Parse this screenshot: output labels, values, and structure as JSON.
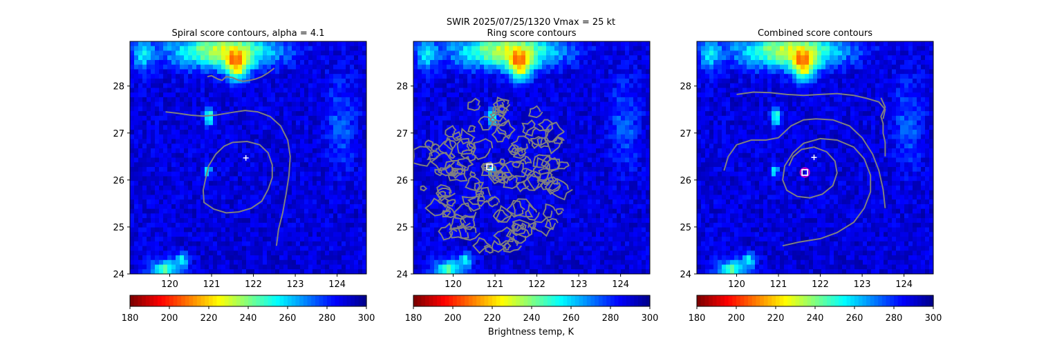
{
  "figure": {
    "suptitle_line1": "SWIR  2025/07/25/1320    Vmax = 25 kt",
    "colorbar_label": "Brightness temp, K"
  },
  "colormap": {
    "name": "jet_r",
    "stops": [
      "#800000",
      "#ff0000",
      "#ff8000",
      "#ffff00",
      "#80ff80",
      "#00ffff",
      "#0080ff",
      "#0000ff",
      "#00008f"
    ]
  },
  "chart_data": [
    {
      "type": "heatmap",
      "title": "Spiral score contours, alpha =  4.1",
      "xlim": [
        119.05,
        124.7
      ],
      "ylim": [
        24.0,
        28.95
      ],
      "xticks": [
        120,
        121,
        122,
        123,
        124
      ],
      "yticks": [
        24,
        25,
        26,
        27,
        28
      ],
      "color_range": [
        180,
        300
      ],
      "colorbar_ticks": [
        180,
        200,
        220,
        240,
        260,
        280,
        300
      ],
      "contour_color": "#808080",
      "markers": [
        {
          "kind": "plus",
          "color": "#ffffff",
          "lon": 121.82,
          "lat": 26.47
        }
      ],
      "contours": [
        [
          [
            120.9,
            28.2
          ],
          [
            121.0,
            28.22
          ],
          [
            121.15,
            28.15
          ],
          [
            121.25,
            28.12
          ],
          [
            121.35,
            28.2
          ],
          [
            121.5,
            28.18
          ],
          [
            121.65,
            28.12
          ],
          [
            121.75,
            28.1
          ],
          [
            121.9,
            28.12
          ],
          [
            122.05,
            28.15
          ],
          [
            122.2,
            28.2
          ],
          [
            122.35,
            28.28
          ],
          [
            122.5,
            28.38
          ]
        ],
        [
          [
            119.9,
            27.45
          ],
          [
            120.2,
            27.42
          ],
          [
            120.5,
            27.38
          ],
          [
            120.8,
            27.36
          ],
          [
            121.1,
            27.38
          ],
          [
            121.5,
            27.44
          ],
          [
            121.8,
            27.48
          ],
          [
            122.1,
            27.45
          ],
          [
            122.4,
            27.35
          ],
          [
            122.65,
            27.15
          ],
          [
            122.82,
            26.85
          ],
          [
            122.88,
            26.5
          ],
          [
            122.85,
            26.1
          ],
          [
            122.78,
            25.7
          ],
          [
            122.7,
            25.3
          ],
          [
            122.6,
            24.95
          ],
          [
            122.55,
            24.6
          ]
        ],
        [
          [
            121.5,
            26.8
          ],
          [
            121.85,
            26.82
          ],
          [
            122.15,
            26.75
          ],
          [
            122.35,
            26.58
          ],
          [
            122.45,
            26.32
          ],
          [
            122.45,
            26.05
          ],
          [
            122.35,
            25.8
          ],
          [
            122.2,
            25.55
          ],
          [
            121.95,
            25.4
          ],
          [
            121.65,
            25.32
          ],
          [
            121.35,
            25.3
          ],
          [
            121.05,
            25.38
          ],
          [
            120.82,
            25.52
          ],
          [
            120.8,
            25.78
          ],
          [
            120.85,
            26.0
          ],
          [
            120.93,
            26.3
          ],
          [
            121.1,
            26.55
          ],
          [
            121.3,
            26.72
          ],
          [
            121.5,
            26.8
          ]
        ]
      ]
    },
    {
      "type": "heatmap",
      "title": "Ring score contours",
      "xlim": [
        119.05,
        124.7
      ],
      "ylim": [
        24.0,
        28.95
      ],
      "xticks": [
        120,
        121,
        122,
        123,
        124
      ],
      "yticks": [
        24,
        25,
        26,
        27,
        28
      ],
      "color_range": [
        180,
        300
      ],
      "colorbar_ticks": [
        180,
        200,
        220,
        240,
        260,
        280,
        300
      ],
      "contour_color": "#808080",
      "ring_center": [
        121.0,
        26.1
      ],
      "ring_radius_deg": [
        1.8,
        1.6
      ],
      "markers": [
        {
          "kind": "square",
          "color": "#ffffff",
          "lon": 120.87,
          "lat": 26.28
        }
      ],
      "contours": []
    },
    {
      "type": "heatmap",
      "title": "Combined score contours",
      "xlim": [
        119.05,
        124.7
      ],
      "ylim": [
        24.0,
        28.95
      ],
      "xticks": [
        120,
        121,
        122,
        123,
        124
      ],
      "yticks": [
        24,
        25,
        26,
        27,
        28
      ],
      "color_range": [
        180,
        300
      ],
      "colorbar_ticks": [
        180,
        200,
        220,
        240,
        260,
        280,
        300
      ],
      "contour_color": "#808080",
      "markers": [
        {
          "kind": "plus",
          "color": "#ffffff",
          "lon": 121.85,
          "lat": 26.48
        },
        {
          "kind": "circle",
          "color": "#cc00cc",
          "lon": 121.63,
          "lat": 26.16
        },
        {
          "kind": "square",
          "color": "#ffffff",
          "lon": 121.63,
          "lat": 26.16
        }
      ],
      "contours": [
        [
          [
            120.0,
            27.82
          ],
          [
            120.4,
            27.87
          ],
          [
            120.8,
            27.86
          ],
          [
            121.2,
            27.82
          ],
          [
            121.6,
            27.8
          ],
          [
            122.0,
            27.82
          ],
          [
            122.4,
            27.84
          ],
          [
            122.8,
            27.8
          ],
          [
            123.1,
            27.74
          ],
          [
            123.4,
            27.66
          ],
          [
            123.55,
            27.5
          ],
          [
            123.5,
            27.3
          ]
        ],
        [
          [
            123.45,
            27.75
          ],
          [
            123.55,
            27.55
          ],
          [
            123.45,
            27.35
          ],
          [
            123.5,
            27.2
          ],
          [
            123.5,
            27.0
          ],
          [
            123.55,
            26.8
          ],
          [
            123.55,
            26.5
          ]
        ],
        [
          [
            119.7,
            26.2
          ],
          [
            119.8,
            26.5
          ],
          [
            120.0,
            26.75
          ],
          [
            120.35,
            26.85
          ],
          [
            120.7,
            26.85
          ],
          [
            121.0,
            26.9
          ],
          [
            121.3,
            27.15
          ],
          [
            121.6,
            27.28
          ],
          [
            121.9,
            27.3
          ],
          [
            122.3,
            27.28
          ],
          [
            122.7,
            27.15
          ],
          [
            123.0,
            26.9
          ],
          [
            123.25,
            26.55
          ],
          [
            123.4,
            26.2
          ],
          [
            123.5,
            25.8
          ],
          [
            123.55,
            25.4
          ]
        ],
        [
          [
            121.1,
            24.6
          ],
          [
            121.5,
            24.68
          ],
          [
            122.0,
            24.75
          ],
          [
            122.4,
            24.88
          ],
          [
            122.8,
            25.1
          ],
          [
            123.05,
            25.4
          ],
          [
            123.2,
            25.75
          ],
          [
            123.2,
            26.1
          ],
          [
            123.05,
            26.45
          ],
          [
            122.8,
            26.7
          ],
          [
            122.4,
            26.85
          ],
          [
            122.0,
            26.88
          ],
          [
            121.6,
            26.78
          ],
          [
            121.35,
            26.58
          ],
          [
            121.15,
            26.3
          ],
          [
            121.1,
            26.0
          ],
          [
            121.2,
            25.78
          ],
          [
            121.45,
            25.65
          ],
          [
            121.75,
            25.62
          ],
          [
            122.05,
            25.7
          ],
          [
            122.3,
            25.88
          ],
          [
            122.4,
            26.15
          ],
          [
            122.35,
            26.4
          ],
          [
            122.15,
            26.6
          ],
          [
            121.85,
            26.7
          ],
          [
            121.55,
            26.65
          ],
          [
            121.35,
            26.5
          ],
          [
            121.25,
            26.3
          ]
        ]
      ]
    }
  ]
}
